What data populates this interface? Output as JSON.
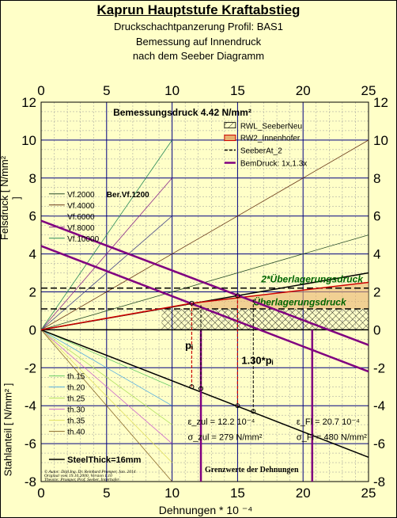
{
  "header": {
    "title": "Kaprun Hauptstufe Kraftabstieg",
    "subtitle1": "Druckschachtpanzerung Profil: BAS1",
    "subtitle2": "Bemessung auf Innendruck",
    "subtitle3": "nach dem Seeber Diagramm"
  },
  "colors": {
    "background": "#ffffc8",
    "grid_major": "#000080",
    "grid_minor": "#9a9a9a",
    "bem_druck": "#800080",
    "rw2": "#cc0000",
    "ueberlagerung": "#006400"
  },
  "chart_data": {
    "type": "line",
    "title": "Bemessungsdruck 4.42 N/mm²",
    "xlabel": "Dehnungen * 10 ⁻⁴",
    "ylabel_top": "Felsdruck [ N/mm² ]",
    "ylabel_bottom": "Stahlanteil [ N/mm² ]",
    "xlim": [
      0,
      25
    ],
    "ylim": [
      -8,
      12
    ],
    "x_ticks": [
      "0",
      "5",
      "10",
      "15",
      "20",
      "25"
    ],
    "y_ticks": [
      "-8",
      "-6",
      "-4",
      "-2",
      "0",
      "2",
      "4",
      "6",
      "8",
      "10",
      "12"
    ],
    "grid": true,
    "legend_top_right": [
      "RWL_SeeberNeu",
      "RW2_Innenhofer",
      "SeeberAt_2",
      "BemDruck: 1x,1.3x"
    ],
    "legend_vf": [
      "Vf.2000",
      "Vf.4000",
      "Vf.6000",
      "Vf.8000",
      "Vf.10000"
    ],
    "vf_extra_label": "Ber.Vf.1200",
    "legend_th": [
      "th.15",
      "th.20",
      "th.25",
      "th.30",
      "th.35",
      "th.40"
    ],
    "steel_label": "SteelThick=16mm",
    "rock_lines": [
      {
        "name": "Vf.2000",
        "slope": 0.2,
        "color": "#2b4f2b"
      },
      {
        "name": "Vf.4000",
        "slope": 0.4,
        "color": "#6b3a1a"
      },
      {
        "name": "Vf.6000",
        "slope": 0.6,
        "color": "#4b4b8a"
      },
      {
        "name": "Vf.8000",
        "slope": 0.8,
        "color": "#8a2a8a"
      },
      {
        "name": "Vf.10000",
        "slope": 1.0,
        "color": "#2a8a5a"
      },
      {
        "name": "Ber.Vf.1200",
        "slope": 0.12,
        "color": "#000000"
      }
    ],
    "steel_lines": [
      {
        "name": "th.15",
        "slope": -0.3,
        "color": "#66cc66"
      },
      {
        "name": "th.20",
        "slope": -0.4,
        "color": "#5ab0e0"
      },
      {
        "name": "th.25",
        "slope": -0.5,
        "color": "#b0e060"
      },
      {
        "name": "th.30",
        "slope": -0.6,
        "color": "#cc66cc"
      },
      {
        "name": "th.35",
        "slope": -0.7,
        "color": "#e0e060"
      },
      {
        "name": "th.40",
        "slope": -0.8,
        "color": "#8a6a2a"
      },
      {
        "name": "SteelThick=16mm",
        "slope": -0.2688,
        "color": "#000000"
      }
    ],
    "bem_druck_lines": [
      {
        "name": "1x",
        "points": [
          [
            0,
            4.42
          ],
          [
            25,
            -2.2
          ]
        ]
      },
      {
        "name": "1.3x",
        "points": [
          [
            0,
            5.75
          ],
          [
            25,
            -0.8
          ]
        ]
      }
    ],
    "ueberlagerung": {
      "label": "Überlagerungsdruck",
      "value": 1.1,
      "label2": "2*Überlagerungsdruck",
      "value2": 2.2
    },
    "rw2_curve": {
      "points": [
        [
          0,
          0
        ],
        [
          11.5,
          1.4
        ],
        [
          25,
          2.5
        ]
      ]
    },
    "vertical_markers": [
      {
        "x": 12.2,
        "label_eps": "ε_zul = 12.2 10⁻⁴",
        "label_sigma": "σ_zul = 279 N/mm²"
      },
      {
        "x": 20.7,
        "label_eps": "ε_Fl = 20.7 10⁻⁴",
        "label_sigma": "σ_Fl = 480 N/mm²"
      }
    ],
    "pi_labels": [
      "pᵢ",
      "1.30*pᵢ"
    ],
    "limit_label": "Grenzwerte der Dehnungen"
  },
  "footer": {
    "author": "© Autor: Dipl.Ing. Dr. Reinhard Promper, Jan. 2014",
    "original": "Original vom 19.10.2000, Version 1.10",
    "theorie": "Theorie: Promper, Prof. Seeber, Innerhofer"
  }
}
